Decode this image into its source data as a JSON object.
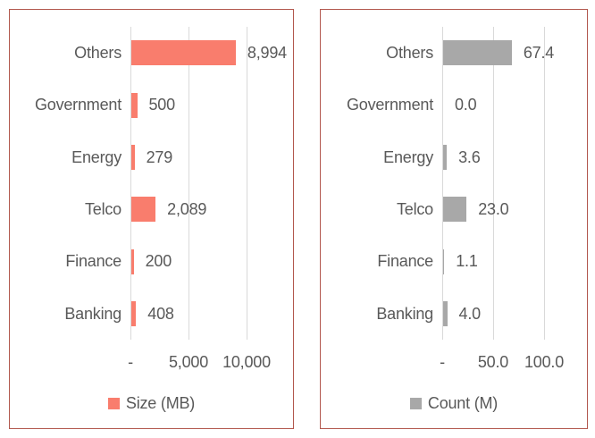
{
  "page": {
    "background": "#ffffff",
    "panel_border_color": "#b2584e",
    "text_color": "#595959",
    "gridline_color": "#d9d9d9"
  },
  "chart_data": [
    {
      "type": "bar",
      "orientation": "horizontal",
      "title": "",
      "xlabel": "",
      "ylabel": "",
      "categories": [
        "Others",
        "Government",
        "Energy",
        "Telco",
        "Finance",
        "Banking"
      ],
      "values": [
        8994,
        500,
        279,
        2089,
        200,
        408
      ],
      "value_labels": [
        "8,994",
        "500",
        "279",
        "2,089",
        "200",
        "408"
      ],
      "xlim": [
        0,
        10000
      ],
      "xticks": [
        0,
        5000,
        10000
      ],
      "xtick_labels": [
        "-",
        "5,000",
        "10,000"
      ],
      "grid": true,
      "bar_color": "#f97d6d",
      "text_color": "#595959",
      "gridline_color": "#d9d9d9",
      "legend": {
        "label": "Size (MB)",
        "color": "#f97d6d",
        "position": "bottom"
      }
    },
    {
      "type": "bar",
      "orientation": "horizontal",
      "title": "",
      "xlabel": "",
      "ylabel": "",
      "categories": [
        "Others",
        "Government",
        "Energy",
        "Telco",
        "Finance",
        "Banking"
      ],
      "values": [
        67.4,
        0.0,
        3.6,
        23.0,
        1.1,
        4.0
      ],
      "value_labels": [
        "67.4",
        "0.0",
        "3.6",
        "23.0",
        "1.1",
        "4.0"
      ],
      "xlim": [
        0,
        100
      ],
      "xticks": [
        0,
        50,
        100
      ],
      "xtick_labels": [
        "-",
        "50.0",
        "100.0"
      ],
      "grid": true,
      "bar_color": "#a8a8a8",
      "text_color": "#595959",
      "gridline_color": "#d9d9d9",
      "legend": {
        "label": "Count (M)",
        "color": "#a8a8a8",
        "position": "bottom"
      }
    }
  ]
}
